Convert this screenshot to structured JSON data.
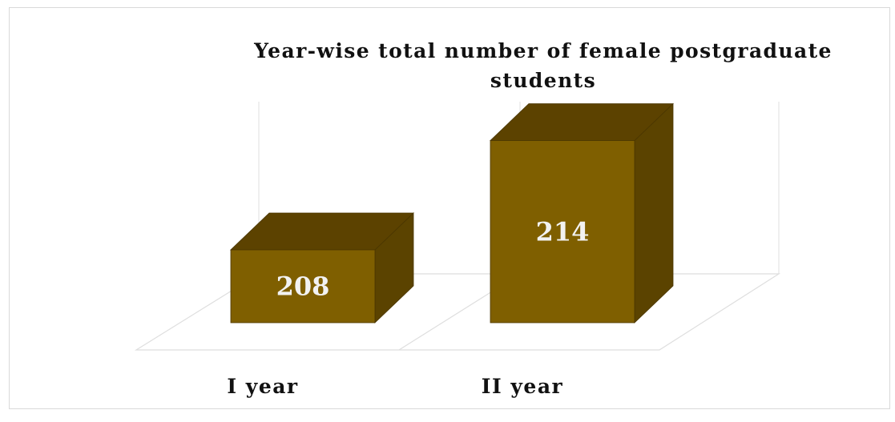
{
  "chart_data": {
    "type": "bar",
    "style": "3d-column",
    "title": "Year-wise total number of female postgraduate students",
    "title_lines": [
      "Year-wise total number of female postgraduate",
      "students"
    ],
    "categories": [
      "I year",
      "II year"
    ],
    "values": [
      208,
      214
    ],
    "data_labels": [
      "208",
      "214"
    ],
    "xlabel": "",
    "ylabel": "",
    "ylim": [
      204,
      216
    ],
    "grid": false,
    "legend": "none",
    "colors": {
      "front": "#7f5f00",
      "top": "#5c4200",
      "side": "#5b4300",
      "edge": "#4a3600",
      "label": "#f2f2f2",
      "floor": "#dedede",
      "wall": "#e4e4e4"
    }
  }
}
